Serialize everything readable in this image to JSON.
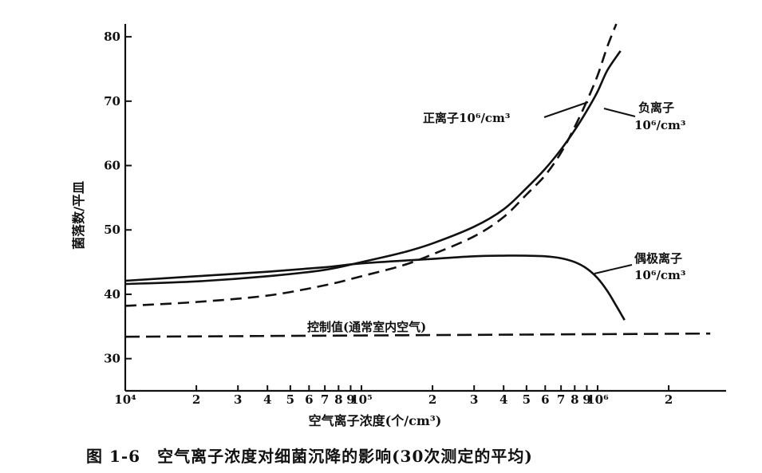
{
  "caption": "图 1-6　空气离子浓度对细菌沉降的影响(30次测定的平均)",
  "chart_data": {
    "type": "line",
    "xlabel": "空气离子浓度(个/cm³)",
    "ylabel": "菌落数/平皿",
    "xscale": "log",
    "xlim": [
      10000,
      3500000
    ],
    "ylim": [
      25,
      82
    ],
    "x_ticks": [
      {
        "value": 10000,
        "label": "10⁴"
      },
      {
        "value": 20000,
        "label": "2"
      },
      {
        "value": 30000,
        "label": "3"
      },
      {
        "value": 40000,
        "label": "4"
      },
      {
        "value": 50000,
        "label": "5"
      },
      {
        "value": 60000,
        "label": "6"
      },
      {
        "value": 70000,
        "label": "7"
      },
      {
        "value": 80000,
        "label": "8"
      },
      {
        "value": 90000,
        "label": "9"
      },
      {
        "value": 100000,
        "label": "10⁵"
      },
      {
        "value": 200000,
        "label": "2"
      },
      {
        "value": 300000,
        "label": "3"
      },
      {
        "value": 400000,
        "label": "4"
      },
      {
        "value": 500000,
        "label": "5"
      },
      {
        "value": 600000,
        "label": "6"
      },
      {
        "value": 700000,
        "label": "7"
      },
      {
        "value": 800000,
        "label": "8"
      },
      {
        "value": 900000,
        "label": "9"
      },
      {
        "value": 1000000,
        "label": "10⁶"
      },
      {
        "value": 2000000,
        "label": "2"
      }
    ],
    "y_ticks": [
      {
        "value": 30,
        "label": "30"
      },
      {
        "value": 40,
        "label": "40"
      },
      {
        "value": 50,
        "label": "50"
      },
      {
        "value": 60,
        "label": "60"
      },
      {
        "value": 70,
        "label": "70"
      },
      {
        "value": 80,
        "label": "80"
      }
    ],
    "series": [
      {
        "name": "正离子10⁶/cm³",
        "style": "dashed",
        "points": [
          [
            10000,
            38.2
          ],
          [
            20000,
            38.8
          ],
          [
            40000,
            39.8
          ],
          [
            70000,
            41.4
          ],
          [
            100000,
            42.8
          ],
          [
            150000,
            44.5
          ],
          [
            200000,
            46.2
          ],
          [
            300000,
            49.0
          ],
          [
            400000,
            52.0
          ],
          [
            500000,
            55.5
          ],
          [
            600000,
            58.5
          ],
          [
            700000,
            62.0
          ],
          [
            800000,
            66.0
          ],
          [
            900000,
            70.0
          ],
          [
            1000000,
            74.0
          ],
          [
            1100000,
            78.5
          ],
          [
            1200000,
            82.0
          ]
        ]
      },
      {
        "name": "负离子10⁶/cm³",
        "style": "solid",
        "points": [
          [
            10000,
            41.6
          ],
          [
            20000,
            42.0
          ],
          [
            40000,
            42.8
          ],
          [
            70000,
            43.8
          ],
          [
            100000,
            45.0
          ],
          [
            150000,
            46.5
          ],
          [
            200000,
            47.9
          ],
          [
            300000,
            50.5
          ],
          [
            400000,
            53.2
          ],
          [
            500000,
            56.5
          ],
          [
            600000,
            59.5
          ],
          [
            700000,
            62.5
          ],
          [
            800000,
            65.5
          ],
          [
            900000,
            68.5
          ],
          [
            1000000,
            71.5
          ],
          [
            1100000,
            74.8
          ],
          [
            1250000,
            77.8
          ]
        ]
      },
      {
        "name": "偶极离子10⁶/cm³",
        "style": "solid",
        "points": [
          [
            10000,
            42.1
          ],
          [
            20000,
            42.8
          ],
          [
            40000,
            43.5
          ],
          [
            70000,
            44.2
          ],
          [
            100000,
            44.8
          ],
          [
            200000,
            45.5
          ],
          [
            300000,
            45.9
          ],
          [
            400000,
            46.0
          ],
          [
            500000,
            46.0
          ],
          [
            600000,
            45.9
          ],
          [
            700000,
            45.6
          ],
          [
            800000,
            45.0
          ],
          [
            900000,
            44.0
          ],
          [
            1000000,
            42.5
          ],
          [
            1100000,
            40.5
          ],
          [
            1200000,
            38.2
          ],
          [
            1300000,
            36.0
          ]
        ]
      },
      {
        "name": "控制值(通常室内空气)",
        "style": "long-dash",
        "points": [
          [
            10000,
            33.4
          ],
          [
            3000000,
            33.9
          ]
        ]
      }
    ],
    "annotations": [
      {
        "text": "正离子10⁶/cm³",
        "series": 0
      },
      {
        "text": "负离子",
        "series": 1
      },
      {
        "text": "10⁶/cm³",
        "series": 1
      },
      {
        "text": "偶极离子",
        "series": 2
      },
      {
        "text": "10⁶/cm³",
        "series": 2
      },
      {
        "text": "控制值(通常室内空气)",
        "series": 3
      }
    ]
  }
}
